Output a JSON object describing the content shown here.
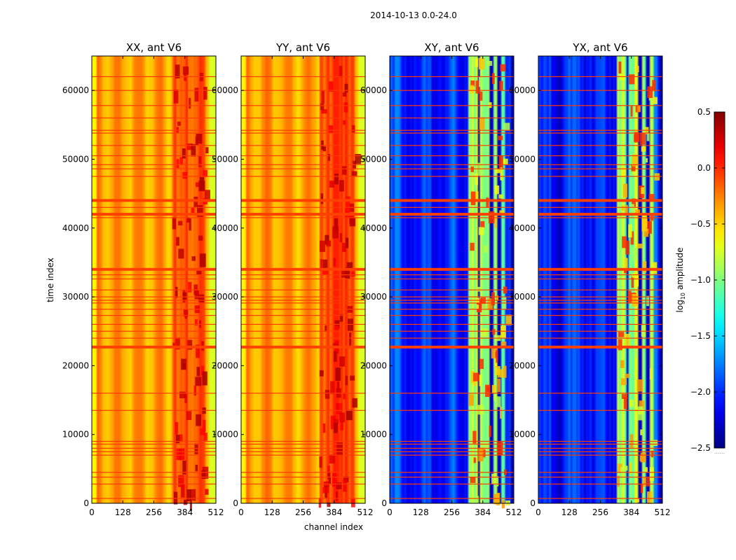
{
  "chart_data": {
    "type": "heatmap",
    "title": "2014-10-13 0.0-24.0",
    "xlabel": "channel index",
    "ylabel": "time index",
    "xlim": [
      0,
      512
    ],
    "ylim": [
      0,
      65000
    ],
    "xticks": [
      0,
      128,
      256,
      384,
      512
    ],
    "yticks": [
      0,
      10000,
      20000,
      30000,
      40000,
      50000,
      60000
    ],
    "colormap": "jet",
    "colorbar": {
      "label_prefix": "log",
      "label_sub": "10",
      "label_suffix": " amplitude",
      "range": [
        -2.5,
        0.5
      ],
      "ticks": [
        {
          "value": -2.5,
          "label": "−2.5"
        },
        {
          "value": -2.0,
          "label": "−2.0"
        },
        {
          "value": -1.5,
          "label": "−1.5"
        },
        {
          "value": -1.0,
          "label": "−1.0"
        },
        {
          "value": -0.5,
          "label": "−0.5"
        },
        {
          "value": 0.0,
          "label": "0.0"
        },
        {
          "value": 0.5,
          "label": "0.5"
        }
      ],
      "footer": "......"
    },
    "flagged_rows_thick": [
      22700,
      34000,
      42000,
      44000
    ],
    "flagged_rows_thin": [
      700,
      2800,
      3800,
      4500,
      7000,
      7500,
      8000,
      8600,
      9000,
      13500,
      16000,
      24000,
      25000,
      26000,
      27300,
      28200,
      29100,
      29500,
      30000,
      31000,
      32600,
      33200,
      41500,
      43000,
      47500,
      48600,
      49200,
      50500,
      52000,
      53800,
      54200,
      56000,
      57800,
      60000,
      62000
    ],
    "panels": [
      {
        "title": "XX, ant V6",
        "base_level": -0.35,
        "strong_band": [
          330,
          470
        ],
        "strong_level": 0.05,
        "show_ylabels": true
      },
      {
        "title": "YY, ant V6",
        "base_level": -0.35,
        "strong_band": [
          320,
          470
        ],
        "strong_level": 0.05,
        "show_ylabels": true
      },
      {
        "title": "XY, ant V6",
        "base_level": -2.05,
        "strong_band": [
          325,
          480
        ],
        "strong_level": -0.9,
        "show_ylabels": true
      },
      {
        "title": "YX, ant V6",
        "base_level": -2.05,
        "strong_band": [
          325,
          480
        ],
        "strong_level": -0.9,
        "show_ylabels": true
      }
    ]
  }
}
